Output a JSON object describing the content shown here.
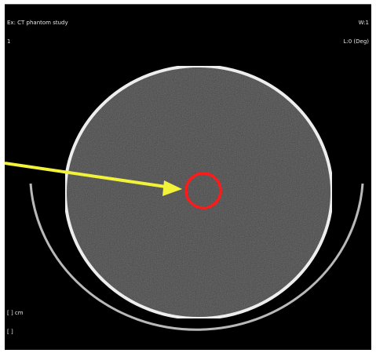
{
  "viewer": {
    "background": "#000000",
    "frame_border": "#3a5a8a"
  },
  "overlay": {
    "top_left": [
      "Ex: CT phantom study",
      "1"
    ],
    "top_right": [
      "W:1",
      "L:0 (Deg)"
    ],
    "bottom_left": [
      "[ ] cm",
      "[ ]"
    ]
  },
  "image": {
    "phantom_fill": "#4a4a4a",
    "phantom_rim": "#f2f2f2",
    "table_arc": "#b9b9b9",
    "roi_color": "#ff1a1a",
    "arrow_color": "#f2f23a"
  }
}
